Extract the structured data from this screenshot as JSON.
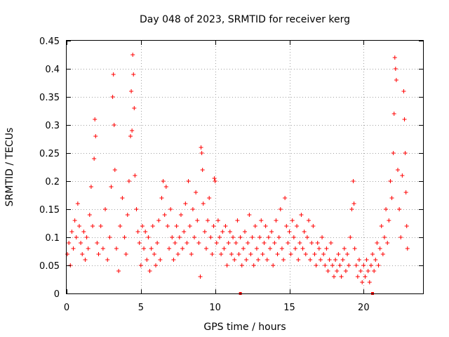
{
  "chart_data": {
    "type": "scatter",
    "title": "Day 048 of 2023, SRMTID for receiver kerg",
    "xlabel": "GPS time / hours",
    "ylabel": "SRMTID / TECUs",
    "xlim": [
      0,
      24
    ],
    "ylim": [
      0,
      0.45
    ],
    "xticks": [
      0,
      5,
      10,
      15,
      20
    ],
    "xtick_labels": [
      "0",
      "5",
      "10",
      "15",
      "20"
    ],
    "yticks": [
      0,
      0.05,
      0.1,
      0.15,
      0.2,
      0.25,
      0.3,
      0.35,
      0.4,
      0.45
    ],
    "ytick_labels": [
      "0",
      "0.05",
      "0.1",
      "0.15",
      "0.2",
      "0.25",
      "0.3",
      "0.35",
      "0.4",
      "0.45"
    ],
    "grid": true,
    "marker": "+",
    "series_color": "#ff0000",
    "series": [
      {
        "name": "SRMTID",
        "points": [
          [
            0.05,
            0.07
          ],
          [
            0.15,
            0.09
          ],
          [
            0.25,
            0.05
          ],
          [
            0.35,
            0.11
          ],
          [
            0.45,
            0.08
          ],
          [
            0.55,
            0.13
          ],
          [
            0.65,
            0.1
          ],
          [
            0.75,
            0.16
          ],
          [
            0.85,
            0.12
          ],
          [
            0.95,
            0.09
          ],
          [
            1.05,
            0.07
          ],
          [
            1.15,
            0.11
          ],
          [
            1.25,
            0.06
          ],
          [
            1.35,
            0.1
          ],
          [
            1.45,
            0.08
          ],
          [
            1.55,
            0.14
          ],
          [
            1.65,
            0.19
          ],
          [
            1.75,
            0.12
          ],
          [
            1.85,
            0.24
          ],
          [
            1.9,
            0.31
          ],
          [
            1.95,
            0.28
          ],
          [
            2.05,
            0.09
          ],
          [
            2.15,
            0.07
          ],
          [
            2.3,
            0.12
          ],
          [
            2.45,
            0.08
          ],
          [
            2.6,
            0.15
          ],
          [
            2.75,
            0.06
          ],
          [
            2.9,
            0.1
          ],
          [
            3.0,
            0.19
          ],
          [
            3.1,
            0.35
          ],
          [
            3.15,
            0.39
          ],
          [
            3.2,
            0.3
          ],
          [
            3.25,
            0.22
          ],
          [
            3.35,
            0.08
          ],
          [
            3.5,
            0.04
          ],
          [
            3.6,
            0.12
          ],
          [
            3.75,
            0.17
          ],
          [
            3.9,
            0.1
          ],
          [
            4.0,
            0.07
          ],
          [
            4.1,
            0.14
          ],
          [
            4.2,
            0.2
          ],
          [
            4.3,
            0.28
          ],
          [
            4.35,
            0.36
          ],
          [
            4.4,
            0.29
          ],
          [
            4.45,
            0.425
          ],
          [
            4.5,
            0.39
          ],
          [
            4.55,
            0.33
          ],
          [
            4.6,
            0.21
          ],
          [
            4.7,
            0.15
          ],
          [
            4.8,
            0.11
          ],
          [
            4.9,
            0.09
          ],
          [
            5.0,
            0.05
          ],
          [
            5.1,
            0.12
          ],
          [
            5.2,
            0.08
          ],
          [
            5.3,
            0.11
          ],
          [
            5.4,
            0.06
          ],
          [
            5.5,
            0.1
          ],
          [
            5.6,
            0.04
          ],
          [
            5.7,
            0.08
          ],
          [
            5.8,
            0.12
          ],
          [
            5.9,
            0.07
          ],
          [
            6.0,
            0.05
          ],
          [
            6.1,
            0.09
          ],
          [
            6.2,
            0.13
          ],
          [
            6.3,
            0.06
          ],
          [
            6.4,
            0.17
          ],
          [
            6.5,
            0.2
          ],
          [
            6.6,
            0.14
          ],
          [
            6.7,
            0.19
          ],
          [
            6.8,
            0.12
          ],
          [
            6.9,
            0.08
          ],
          [
            7.0,
            0.15
          ],
          [
            7.1,
            0.1
          ],
          [
            7.2,
            0.06
          ],
          [
            7.3,
            0.09
          ],
          [
            7.4,
            0.12
          ],
          [
            7.5,
            0.07
          ],
          [
            7.6,
            0.1
          ],
          [
            7.7,
            0.14
          ],
          [
            7.8,
            0.08
          ],
          [
            7.9,
            0.11
          ],
          [
            8.0,
            0.16
          ],
          [
            8.1,
            0.09
          ],
          [
            8.2,
            0.2
          ],
          [
            8.3,
            0.12
          ],
          [
            8.4,
            0.07
          ],
          [
            8.5,
            0.15
          ],
          [
            8.6,
            0.1
          ],
          [
            8.7,
            0.18
          ],
          [
            8.8,
            0.13
          ],
          [
            8.9,
            0.09
          ],
          [
            9.0,
            0.03
          ],
          [
            9.05,
            0.26
          ],
          [
            9.1,
            0.25
          ],
          [
            9.15,
            0.22
          ],
          [
            9.2,
            0.16
          ],
          [
            9.3,
            0.11
          ],
          [
            9.4,
            0.08
          ],
          [
            9.5,
            0.13
          ],
          [
            9.6,
            0.17
          ],
          [
            9.7,
            0.1
          ],
          [
            9.8,
            0.07
          ],
          [
            9.9,
            0.12
          ],
          [
            9.95,
            0.205
          ],
          [
            10.0,
            0.2
          ],
          [
            10.1,
            0.09
          ],
          [
            10.2,
            0.13
          ],
          [
            10.3,
            0.1
          ],
          [
            10.4,
            0.07
          ],
          [
            10.5,
            0.11
          ],
          [
            10.6,
            0.08
          ],
          [
            10.7,
            0.12
          ],
          [
            10.8,
            0.05
          ],
          [
            10.9,
            0.09
          ],
          [
            11.0,
            0.11
          ],
          [
            11.1,
            0.07
          ],
          [
            11.2,
            0.1
          ],
          [
            11.3,
            0.06
          ],
          [
            11.4,
            0.09
          ],
          [
            11.5,
            0.13
          ],
          [
            11.6,
            0.07
          ],
          [
            11.7,
            0.1
          ],
          [
            11.8,
            0.05
          ],
          [
            11.9,
            0.08
          ],
          [
            12.0,
            0.11
          ],
          [
            12.1,
            0.06
          ],
          [
            12.2,
            0.09
          ],
          [
            12.3,
            0.14
          ],
          [
            12.4,
            0.07
          ],
          [
            12.5,
            0.1
          ],
          [
            12.6,
            0.05
          ],
          [
            12.7,
            0.12
          ],
          [
            12.8,
            0.08
          ],
          [
            12.9,
            0.06
          ],
          [
            13.0,
            0.1
          ],
          [
            13.1,
            0.13
          ],
          [
            13.2,
            0.07
          ],
          [
            13.3,
            0.09
          ],
          [
            13.4,
            0.12
          ],
          [
            13.5,
            0.06
          ],
          [
            13.6,
            0.1
          ],
          [
            13.7,
            0.08
          ],
          [
            13.8,
            0.11
          ],
          [
            13.9,
            0.05
          ],
          [
            14.0,
            0.09
          ],
          [
            14.1,
            0.13
          ],
          [
            14.2,
            0.07
          ],
          [
            14.3,
            0.1
          ],
          [
            14.4,
            0.15
          ],
          [
            14.5,
            0.08
          ],
          [
            14.6,
            0.06
          ],
          [
            14.7,
            0.17
          ],
          [
            14.8,
            0.12
          ],
          [
            14.9,
            0.09
          ],
          [
            15.0,
            0.11
          ],
          [
            15.1,
            0.07
          ],
          [
            15.2,
            0.13
          ],
          [
            15.3,
            0.1
          ],
          [
            15.4,
            0.08
          ],
          [
            15.5,
            0.12
          ],
          [
            15.6,
            0.06
          ],
          [
            15.7,
            0.09
          ],
          [
            15.8,
            0.14
          ],
          [
            15.9,
            0.08
          ],
          [
            16.0,
            0.11
          ],
          [
            16.1,
            0.07
          ],
          [
            16.2,
            0.1
          ],
          [
            16.3,
            0.13
          ],
          [
            16.4,
            0.06
          ],
          [
            16.5,
            0.09
          ],
          [
            16.6,
            0.12
          ],
          [
            16.7,
            0.07
          ],
          [
            16.8,
            0.05
          ],
          [
            16.9,
            0.09
          ],
          [
            17.0,
            0.08
          ],
          [
            17.1,
            0.06
          ],
          [
            17.2,
            0.1
          ],
          [
            17.3,
            0.07
          ],
          [
            17.4,
            0.05
          ],
          [
            17.5,
            0.08
          ],
          [
            17.6,
            0.04
          ],
          [
            17.7,
            0.06
          ],
          [
            17.8,
            0.09
          ],
          [
            17.9,
            0.05
          ],
          [
            18.0,
            0.03
          ],
          [
            18.1,
            0.06
          ],
          [
            18.2,
            0.04
          ],
          [
            18.3,
            0.07
          ],
          [
            18.4,
            0.05
          ],
          [
            18.5,
            0.03
          ],
          [
            18.6,
            0.06
          ],
          [
            18.7,
            0.08
          ],
          [
            18.8,
            0.04
          ],
          [
            18.9,
            0.07
          ],
          [
            19.0,
            0.05
          ],
          [
            19.1,
            0.1
          ],
          [
            19.2,
            0.15
          ],
          [
            19.3,
            0.2
          ],
          [
            19.35,
            0.16
          ],
          [
            19.4,
            0.08
          ],
          [
            19.5,
            0.05
          ],
          [
            19.6,
            0.03
          ],
          [
            19.7,
            0.06
          ],
          [
            19.8,
            0.04
          ],
          [
            19.9,
            0.02
          ],
          [
            20.0,
            0.05
          ],
          [
            20.1,
            0.03
          ],
          [
            20.2,
            0.06
          ],
          [
            20.3,
            0.04
          ],
          [
            20.4,
            0.02
          ],
          [
            20.5,
            0.05
          ],
          [
            20.6,
            0.07
          ],
          [
            20.7,
            0.04
          ],
          [
            20.8,
            0.06
          ],
          [
            20.9,
            0.09
          ],
          [
            21.0,
            0.05
          ],
          [
            21.1,
            0.08
          ],
          [
            21.2,
            0.12
          ],
          [
            21.3,
            0.07
          ],
          [
            21.4,
            0.1
          ],
          [
            21.5,
            0.15
          ],
          [
            21.6,
            0.09
          ],
          [
            21.7,
            0.13
          ],
          [
            21.8,
            0.2
          ],
          [
            21.9,
            0.17
          ],
          [
            22.0,
            0.25
          ],
          [
            22.05,
            0.32
          ],
          [
            22.1,
            0.42
          ],
          [
            22.15,
            0.4
          ],
          [
            22.2,
            0.38
          ],
          [
            22.3,
            0.22
          ],
          [
            22.4,
            0.15
          ],
          [
            22.5,
            0.1
          ],
          [
            22.6,
            0.21
          ],
          [
            22.7,
            0.36
          ],
          [
            22.75,
            0.31
          ],
          [
            22.8,
            0.25
          ],
          [
            22.85,
            0.18
          ],
          [
            22.9,
            0.12
          ],
          [
            22.95,
            0.08
          ]
        ]
      }
    ],
    "axis_markers_x": [
      11.7,
      20.6
    ]
  }
}
